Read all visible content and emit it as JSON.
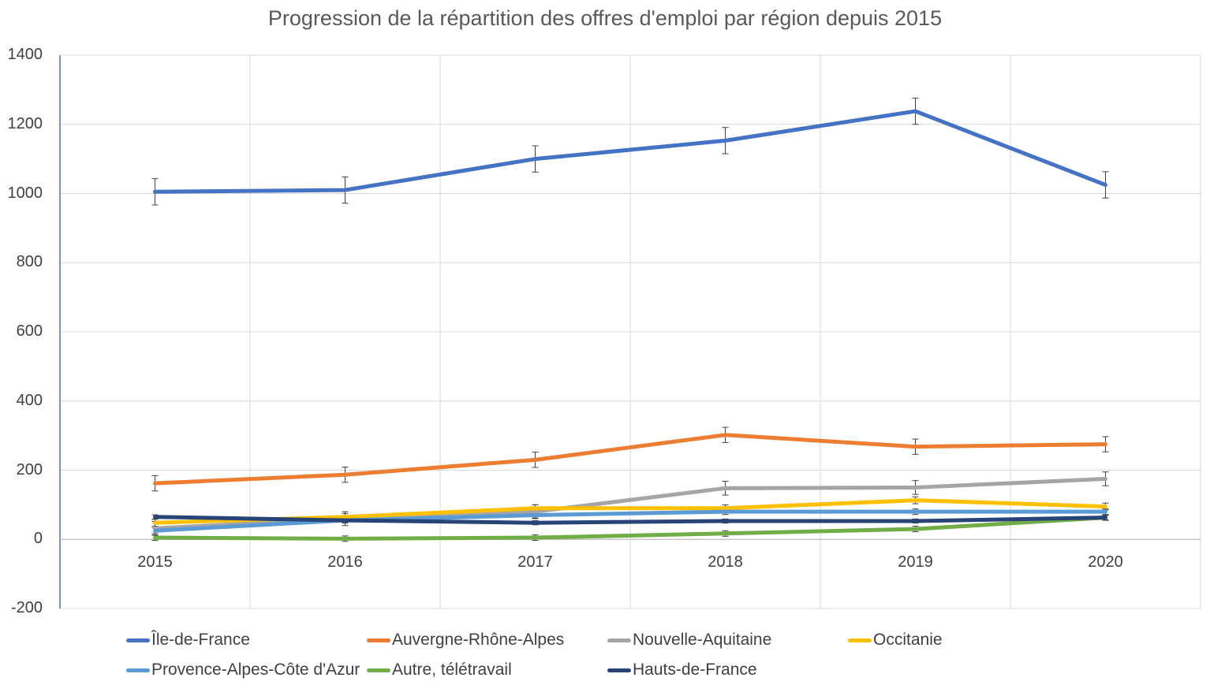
{
  "chart_data": {
    "type": "line",
    "title": "Progression de la répartition des offres d'emploi par région depuis 2015",
    "xlabel": "",
    "ylabel": "",
    "ylim": [
      -200,
      1400
    ],
    "yticks": [
      -200,
      0,
      200,
      400,
      600,
      800,
      1000,
      1200,
      1400
    ],
    "yticks_labels": [
      "-200",
      "0",
      "200",
      "400",
      "600",
      "800",
      "1000",
      "1200",
      "1400"
    ],
    "categories": [
      "2015",
      "2016",
      "2017",
      "2018",
      "2019",
      "2020"
    ],
    "grid": true,
    "legend_position": "bottom",
    "error_bars": true,
    "series": [
      {
        "name": "Île-de-France",
        "color": "#4472C4",
        "values": [
          1005,
          1010,
          1100,
          1153,
          1238,
          1025
        ],
        "errors": [
          38,
          38,
          38,
          38,
          38,
          38
        ]
      },
      {
        "name": "Auvergne-Rhône-Alpes",
        "color": "#ED7D31",
        "values": [
          162,
          187,
          230,
          302,
          268,
          275
        ],
        "errors": [
          22,
          22,
          22,
          22,
          22,
          22
        ]
      },
      {
        "name": "Nouvelle-Aquitaine",
        "color": "#A5A5A5",
        "values": [
          32,
          60,
          80,
          148,
          150,
          175
        ],
        "errors": [
          20,
          20,
          20,
          20,
          20,
          20
        ]
      },
      {
        "name": "Occitanie",
        "color": "#FFC000",
        "values": [
          48,
          65,
          90,
          90,
          113,
          95
        ],
        "errors": [
          10,
          10,
          10,
          10,
          10,
          10
        ]
      },
      {
        "name": "Provence-Alpes-Côte d'Azur",
        "color": "#5B9BD5",
        "values": [
          25,
          55,
          70,
          80,
          80,
          80
        ],
        "errors": [
          8,
          8,
          8,
          8,
          8,
          8
        ]
      },
      {
        "name": "Autre, télétravail",
        "color": "#70AD47",
        "values": [
          5,
          2,
          5,
          17,
          30,
          63
        ],
        "errors": [
          8,
          8,
          8,
          8,
          8,
          8
        ]
      },
      {
        "name": "Hauts-de-France",
        "color": "#264478",
        "values": [
          65,
          55,
          48,
          53,
          53,
          63
        ],
        "errors": [
          6,
          6,
          6,
          6,
          6,
          6
        ]
      }
    ]
  }
}
